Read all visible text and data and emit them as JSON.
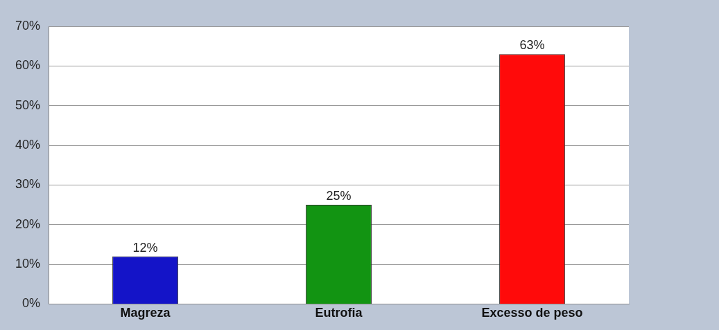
{
  "chart_data": {
    "type": "bar",
    "categories": [
      "Magreza",
      "Eutrofia",
      "Excesso de peso"
    ],
    "values": [
      12,
      25,
      63
    ],
    "colors": [
      "#1414c8",
      "#129412",
      "#ff0a0a"
    ],
    "value_labels": [
      "12%",
      "25%",
      "63%"
    ],
    "ylim": [
      0,
      70
    ],
    "yticks": [
      {
        "value": 0,
        "label": "0%"
      },
      {
        "value": 10,
        "label": "10%"
      },
      {
        "value": 20,
        "label": "20%"
      },
      {
        "value": 30,
        "label": "30%"
      },
      {
        "value": 40,
        "label": "40%"
      },
      {
        "value": 50,
        "label": "50%"
      },
      {
        "value": 60,
        "label": "60%"
      },
      {
        "value": 70,
        "label": "70%"
      }
    ],
    "grid": "y",
    "legend": false
  }
}
